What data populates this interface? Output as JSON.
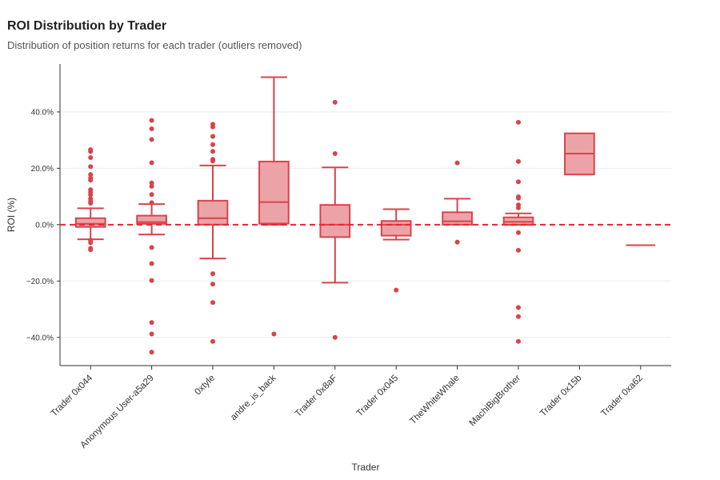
{
  "header": {
    "title": "ROI Distribution by Trader",
    "subtitle": "Distribution of position returns for each trader (outliers removed)"
  },
  "chart_data": {
    "type": "box",
    "xlabel": "Trader",
    "ylabel": "ROI (%)",
    "ylim": [
      -50,
      57
    ],
    "yticks": [
      -40,
      -20,
      0,
      20,
      40
    ],
    "ytick_labels": [
      "−40.0%",
      "−20.0%",
      "0.0%",
      "20.0%",
      "40.0%"
    ],
    "reference_line": 0,
    "colors": {
      "line": "#d9434b",
      "fill": "#eca3a8",
      "grid": "#ececec",
      "axis": "#333333"
    },
    "categories": [
      "Trader 0x044",
      "Anonymous User-a5a29",
      "0xtyle",
      "andre_is_back",
      "Trader 0x8aF",
      "Trader 0x045",
      "TheWhiteWhale",
      "MachiBigBrother",
      "Trader 0x15b",
      "Trader 0xa62"
    ],
    "boxes": [
      {
        "name": "Trader 0x044",
        "q1": -0.8,
        "median": 0.3,
        "q3": 2.3,
        "whisker_low": -5.2,
        "whisker_high": 5.8,
        "outliers": [
          26.6,
          26.0,
          23.8,
          20.6,
          17.8,
          16.6,
          15.8,
          12.4,
          11.5,
          10.6,
          9.2,
          8.3,
          7.6,
          -5.5,
          -6.4,
          -8.4,
          -8.9
        ]
      },
      {
        "name": "Anonymous User-a5a29",
        "q1": 0.3,
        "median": 0.9,
        "q3": 3.2,
        "whisker_low": -3.5,
        "whisker_high": 7.3,
        "outliers": [
          37.0,
          34.0,
          30.2,
          22.0,
          14.8,
          13.6,
          10.7,
          7.8,
          -8.1,
          -13.8,
          -19.8,
          -34.7,
          -38.8,
          -45.2
        ]
      },
      {
        "name": "0xtyle",
        "q1": 0.0,
        "median": 2.3,
        "q3": 8.5,
        "whisker_low": -12.0,
        "whisker_high": 21.0,
        "outliers": [
          35.6,
          34.7,
          31.3,
          28.4,
          26.0,
          23.2,
          22.6,
          -17.4,
          -21.1,
          -27.6,
          -41.4
        ]
      },
      {
        "name": "andre_is_back",
        "q1": 0.4,
        "median": 8.0,
        "q3": 22.4,
        "whisker_low": 0.0,
        "whisker_high": 52.3,
        "outliers": [
          -38.8
        ]
      },
      {
        "name": "Trader 0x8aF",
        "q1": -4.4,
        "median": 0.0,
        "q3": 7.0,
        "whisker_low": -20.6,
        "whisker_high": 20.3,
        "outliers": [
          43.4,
          25.2,
          -40.0
        ]
      },
      {
        "name": "Trader 0x045",
        "q1": -3.9,
        "median": 0.0,
        "q3": 1.3,
        "whisker_low": -5.3,
        "whisker_high": 5.5,
        "outliers": [
          -23.2
        ]
      },
      {
        "name": "TheWhiteWhale",
        "q1": 0.0,
        "median": 1.2,
        "q3": 4.4,
        "whisker_low": 0.0,
        "whisker_high": 9.2,
        "outliers": [
          21.9,
          -6.2
        ]
      },
      {
        "name": "MachiBigBrother",
        "q1": 0.0,
        "median": 1.0,
        "q3": 2.6,
        "whisker_low": -0.1,
        "whisker_high": 4.0,
        "outliers": [
          36.3,
          22.4,
          15.2,
          9.9,
          9.4,
          7.0,
          6.0,
          -2.8,
          -9.1,
          -29.4,
          -32.6,
          -41.4
        ]
      },
      {
        "name": "Trader 0x15b",
        "q1": 17.8,
        "median": 25.2,
        "q3": 32.4,
        "whisker_low": 17.8,
        "whisker_high": 32.4,
        "outliers": []
      },
      {
        "name": "Trader 0xa62",
        "q1": -7.3,
        "median": -7.3,
        "q3": -7.3,
        "whisker_low": -7.3,
        "whisker_high": -7.3,
        "outliers": []
      }
    ]
  }
}
